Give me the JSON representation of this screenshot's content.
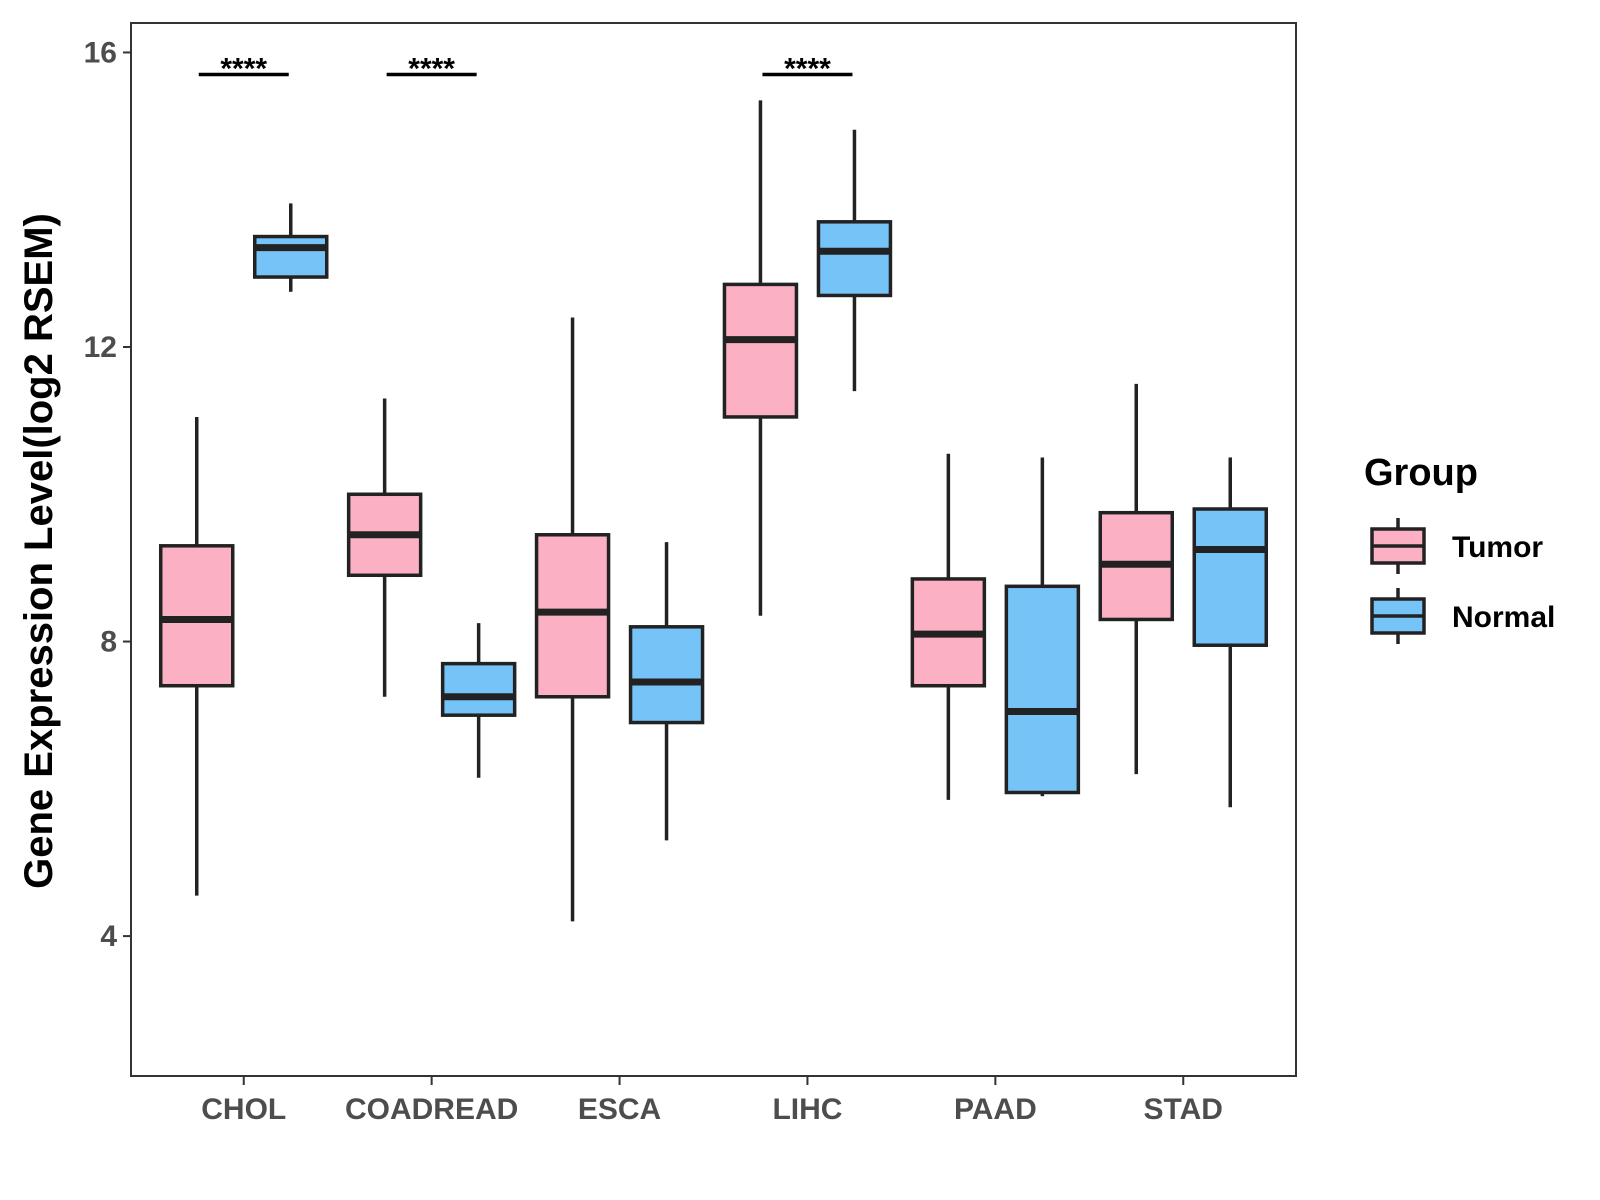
{
  "chart_data": {
    "type": "boxplot",
    "title": "",
    "xlabel": "",
    "ylabel": "Gene Expression Level(log2 RSEM)",
    "ylim": [
      2.1,
      16.4
    ],
    "yticks": [
      4,
      8,
      12,
      16
    ],
    "ytick_labels": [
      "4",
      "8",
      "12",
      "16"
    ],
    "categories": [
      "CHOL",
      "COADREAD",
      "ESCA",
      "LIHC",
      "PAAD",
      "STAD"
    ],
    "legend": {
      "title": "Group",
      "position": "right",
      "entries": [
        "Tumor",
        "Normal"
      ]
    },
    "series": [
      {
        "name": "Tumor",
        "color": "#FBB1C3",
        "boxes": [
          {
            "category": "CHOL",
            "min": 4.55,
            "q1": 7.4,
            "median": 8.3,
            "q3": 9.3,
            "max": 11.05
          },
          {
            "category": "COADREAD",
            "min": 7.25,
            "q1": 8.9,
            "median": 9.45,
            "q3": 10.0,
            "max": 11.3
          },
          {
            "category": "ESCA",
            "min": 4.2,
            "q1": 7.25,
            "median": 8.4,
            "q3": 9.45,
            "max": 12.4
          },
          {
            "category": "LIHC",
            "min": 8.35,
            "q1": 11.05,
            "median": 12.1,
            "q3": 12.85,
            "max": 15.35
          },
          {
            "category": "PAAD",
            "min": 5.85,
            "q1": 7.4,
            "median": 8.1,
            "q3": 8.85,
            "max": 10.55
          },
          {
            "category": "STAD",
            "min": 6.2,
            "q1": 8.3,
            "median": 9.05,
            "q3": 9.75,
            "max": 11.5
          }
        ]
      },
      {
        "name": "Normal",
        "color": "#76C3F8",
        "boxes": [
          {
            "category": "CHOL",
            "min": 12.75,
            "q1": 12.95,
            "median": 13.35,
            "q3": 13.5,
            "max": 13.95
          },
          {
            "category": "COADREAD",
            "min": 6.15,
            "q1": 7.0,
            "median": 7.25,
            "q3": 7.7,
            "max": 8.25
          },
          {
            "category": "ESCA",
            "min": 5.3,
            "q1": 6.9,
            "median": 7.45,
            "q3": 8.2,
            "max": 9.35
          },
          {
            "category": "LIHC",
            "min": 11.4,
            "q1": 12.7,
            "median": 13.3,
            "q3": 13.7,
            "max": 14.95
          },
          {
            "category": "PAAD",
            "min": 5.9,
            "q1": 5.95,
            "median": 7.05,
            "q3": 8.75,
            "max": 10.5
          },
          {
            "category": "STAD",
            "min": 5.75,
            "q1": 7.95,
            "median": 9.25,
            "q3": 9.8,
            "max": 10.5
          }
        ]
      }
    ],
    "annotations": [
      {
        "category": "CHOL",
        "label": "****",
        "y": 15.7
      },
      {
        "category": "COADREAD",
        "label": "****",
        "y": 15.7
      },
      {
        "category": "LIHC",
        "label": "****",
        "y": 15.7
      }
    ]
  }
}
